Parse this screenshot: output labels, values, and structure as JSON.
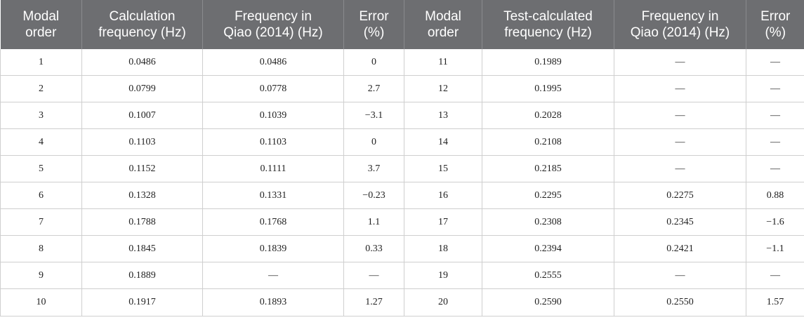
{
  "table": {
    "headers": [
      "Modal\norder",
      "Calculation\nfrequency (Hz)",
      "Frequency in\nQiao (2014) (Hz)",
      "Error\n(%)",
      "Modal\norder",
      "Test-calculated\nfrequency (Hz)",
      "Frequency in\nQiao (2014) (Hz)",
      "Error\n(%)"
    ],
    "rows": [
      [
        "1",
        "0.0486",
        "0.0486",
        "0",
        "11",
        "0.1989",
        "—",
        "—"
      ],
      [
        "2",
        "0.0799",
        "0.0778",
        "2.7",
        "12",
        "0.1995",
        "—",
        "—"
      ],
      [
        "3",
        "0.1007",
        "0.1039",
        "−3.1",
        "13",
        "0.2028",
        "—",
        "—"
      ],
      [
        "4",
        "0.1103",
        "0.1103",
        "0",
        "14",
        "0.2108",
        "—",
        "—"
      ],
      [
        "5",
        "0.1152",
        "0.1111",
        "3.7",
        "15",
        "0.2185",
        "—",
        "—"
      ],
      [
        "6",
        "0.1328",
        "0.1331",
        "−0.23",
        "16",
        "0.2295",
        "0.2275",
        "0.88"
      ],
      [
        "7",
        "0.1788",
        "0.1768",
        "1.1",
        "17",
        "0.2308",
        "0.2345",
        "−1.6"
      ],
      [
        "8",
        "0.1845",
        "0.1839",
        "0.33",
        "18",
        "0.2394",
        "0.2421",
        "−1.1"
      ],
      [
        "9",
        "0.1889",
        "—",
        "—",
        "19",
        "0.2555",
        "—",
        "—"
      ],
      [
        "10",
        "0.1917",
        "0.1893",
        "1.27",
        "20",
        "0.2590",
        "0.2550",
        "1.57"
      ]
    ]
  }
}
